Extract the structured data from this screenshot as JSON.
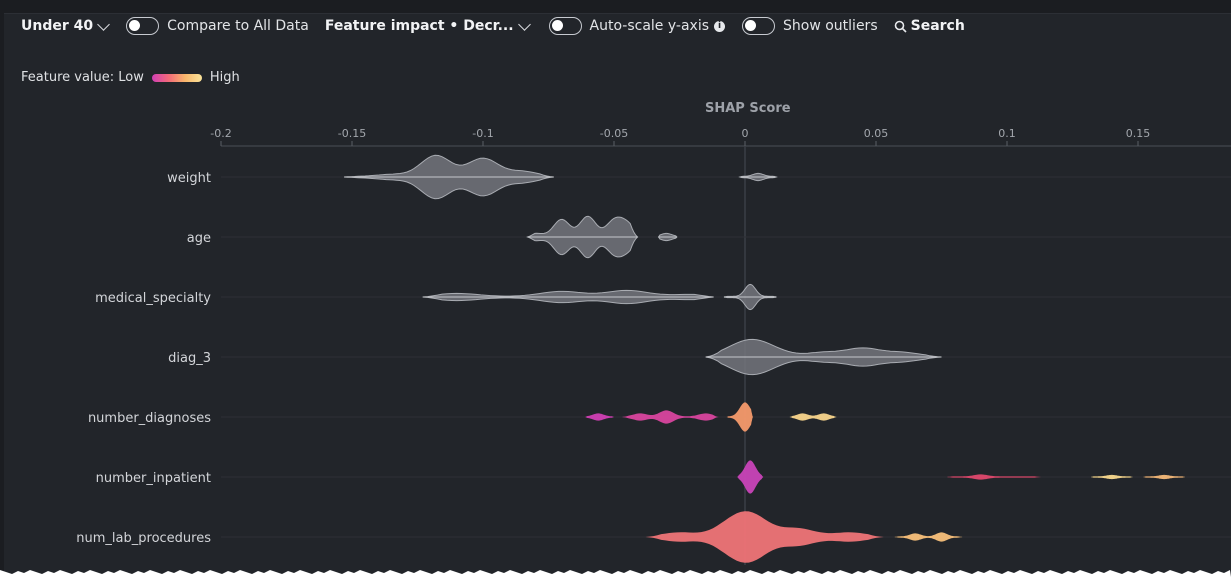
{
  "toolbar": {
    "cohort": "Under 40",
    "compare_label": "Compare to All Data",
    "sort_label": "Feature impact • Decr...",
    "autoscale_label": "Auto-scale y-axis",
    "outliers_label": "Show outliers",
    "search_label": "Search"
  },
  "legend": {
    "prefix": "Feature value: Low",
    "suffix": "High"
  },
  "colors": {
    "low": "#d13fb4",
    "mid": "#f26a79",
    "high": "#fae39a",
    "neutral": "#8d9096"
  },
  "chart_data": {
    "type": "violin",
    "title": "SHAP Score",
    "x_ticks": [
      "-0.2",
      "-0.15",
      "-0.1",
      "-0.05",
      "0",
      "0.05",
      "0.1",
      "0.15"
    ],
    "x_range": [
      -0.2,
      0.185
    ],
    "features": [
      {
        "name": "weight",
        "colored": false,
        "parts": [
          {
            "from": -0.153,
            "to": -0.073,
            "peaks": [
              [
                -0.135,
                2
              ],
              [
                -0.118,
                21
              ],
              [
                -0.1,
                18
              ],
              [
                -0.085,
                5
              ]
            ]
          },
          {
            "from": -0.002,
            "to": 0.012,
            "peaks": [
              [
                0.005,
                3
              ]
            ]
          }
        ]
      },
      {
        "name": "age",
        "colored": false,
        "parts": [
          {
            "from": -0.083,
            "to": -0.041,
            "peaks": [
              [
                -0.08,
                3
              ],
              [
                -0.07,
                17
              ],
              [
                -0.06,
                20
              ],
              [
                -0.05,
                15
              ],
              [
                -0.045,
                12
              ]
            ]
          },
          {
            "from": -0.033,
            "to": -0.026,
            "peaks": [
              [
                -0.03,
                3
              ]
            ]
          }
        ]
      },
      {
        "name": "medical_specialty",
        "colored": false,
        "parts": [
          {
            "from": -0.123,
            "to": -0.012,
            "peaks": [
              [
                -0.11,
                3
              ],
              [
                -0.07,
                5
              ],
              [
                -0.045,
                6
              ],
              [
                -0.02,
                2
              ]
            ]
          },
          {
            "from": -0.008,
            "to": 0.012,
            "peaks": [
              [
                0.002,
                12
              ]
            ]
          }
        ]
      },
      {
        "name": "diag_3",
        "colored": false,
        "parts": [
          {
            "from": -0.015,
            "to": 0.075,
            "peaks": [
              [
                -0.005,
                4
              ],
              [
                0.002,
                12
              ],
              [
                0.01,
                6
              ],
              [
                0.03,
                4
              ],
              [
                0.045,
                8
              ],
              [
                0.06,
                4
              ]
            ]
          }
        ]
      },
      {
        "name": "number_diagnoses",
        "colored": true,
        "parts": [
          {
            "from": -0.061,
            "to": -0.05,
            "peaks": [
              [
                -0.056,
                3
              ]
            ],
            "color": "#d13fb4"
          },
          {
            "from": -0.047,
            "to": -0.01,
            "peaks": [
              [
                -0.04,
                3
              ],
              [
                -0.03,
                6
              ],
              [
                -0.015,
                3
              ]
            ],
            "color": "#d9449e"
          },
          {
            "from": -0.007,
            "to": 0.003,
            "peaks": [
              [
                0.0,
                14
              ]
            ],
            "color": "#f59a6c"
          },
          {
            "from": 0.017,
            "to": 0.035,
            "peaks": [
              [
                0.022,
                3
              ],
              [
                0.03,
                3
              ]
            ],
            "color": "#f9d58c"
          }
        ]
      },
      {
        "name": "number_inpatient",
        "colored": true,
        "parts": [
          {
            "from": -0.003,
            "to": 0.007,
            "peaks": [
              [
                0.002,
                16
              ]
            ],
            "color": "#c943b8"
          },
          {
            "from": 0.077,
            "to": 0.113,
            "peaks": [
              [
                0.09,
                2
              ]
            ],
            "color": "#e0486d"
          },
          {
            "from": 0.132,
            "to": 0.148,
            "peaks": [
              [
                0.14,
                1.5
              ]
            ],
            "color": "#fad98e"
          },
          {
            "from": 0.152,
            "to": 0.168,
            "peaks": [
              [
                0.16,
                1.5
              ]
            ],
            "color": "#f6b878"
          }
        ]
      },
      {
        "name": "num_lab_procedures",
        "colored": true,
        "parts": [
          {
            "from": -0.038,
            "to": 0.053,
            "peaks": [
              [
                -0.025,
                4
              ],
              [
                -0.005,
                12
              ],
              [
                0.003,
                18
              ],
              [
                0.02,
                8
              ],
              [
                0.04,
                4
              ]
            ],
            "color": "#ef7477"
          },
          {
            "from": 0.057,
            "to": 0.083,
            "peaks": [
              [
                0.065,
                3
              ],
              [
                0.075,
                4
              ]
            ],
            "color": "#f9c07a"
          }
        ]
      }
    ]
  }
}
